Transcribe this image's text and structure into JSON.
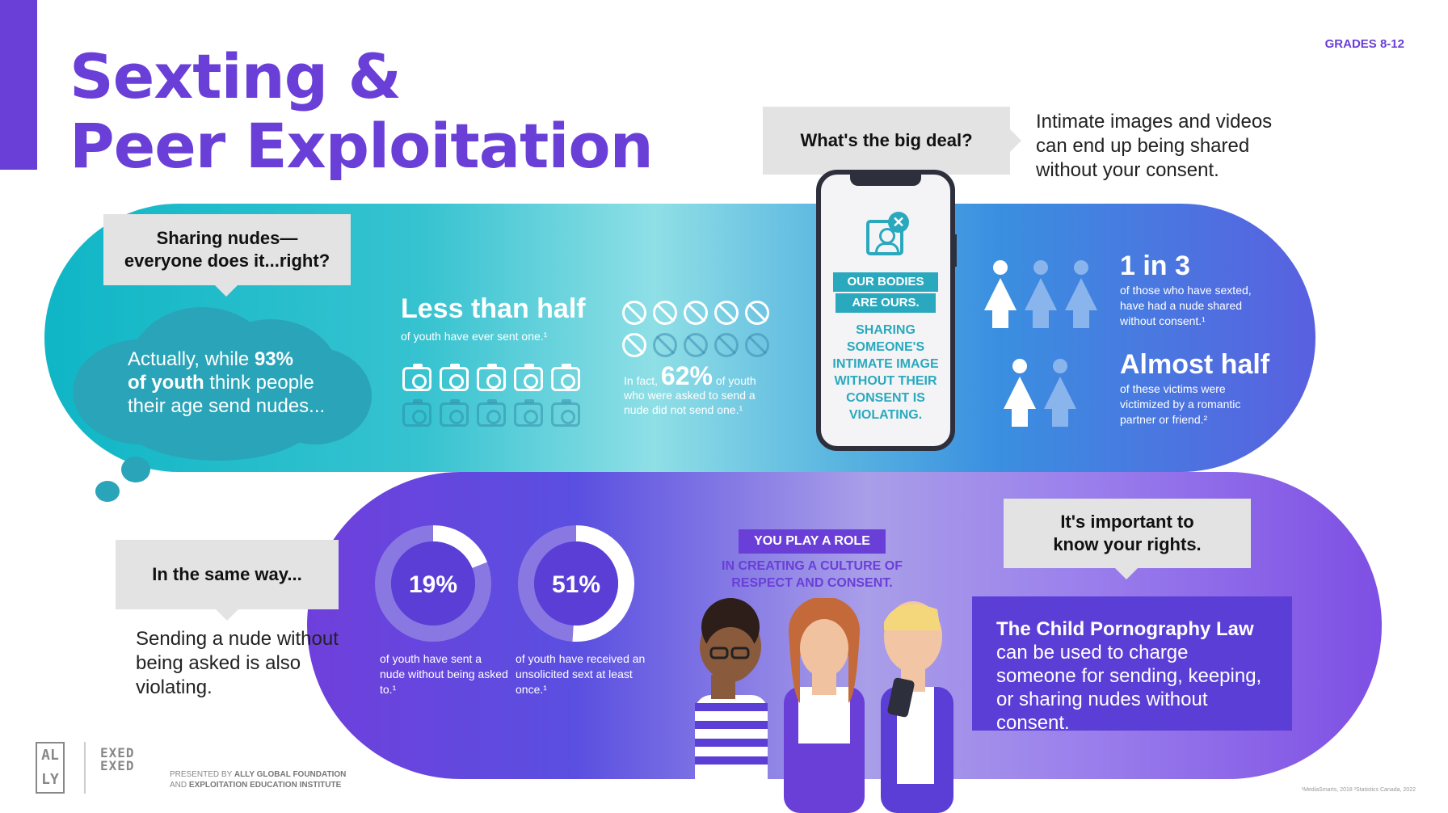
{
  "header": {
    "title_line1": "Sexting &",
    "title_line2": "Peer Exploitation",
    "grades": "GRADES 8-12"
  },
  "callouts": {
    "sharing_nudes": "Sharing nudes—\neveryone does it...right?",
    "big_deal": "What's the big deal?",
    "same_way": "In the same way...",
    "rights_line1": "It's important to",
    "rights_line2": "know your rights."
  },
  "big_deal_text": "Intimate images and videos can end up being shared without your consent.",
  "cloud": {
    "line1_pre": "Actually, while ",
    "line1_bold": "93%",
    "line2_bold": "of youth",
    "line2_rest": " think people",
    "line3": "their age send nudes..."
  },
  "less_than_half": {
    "heading": "Less than half",
    "sub": "of youth have ever sent one.¹"
  },
  "sixty_two": {
    "pre": "In fact, ",
    "big": "62%",
    "post": " of youth",
    "line2": "who were asked to send a",
    "line3": "nude did not send one.¹"
  },
  "phone": {
    "banner1": "OUR BODIES",
    "banner2": "ARE OURS.",
    "message": "SHARING SOMEONE'S INTIMATE IMAGE WITHOUT THEIR CONSENT IS VIOLATING.",
    "close_glyph": "✕"
  },
  "stats_right": {
    "one_in_3": "1 in 3",
    "one_in_3_sub": "of those who have sexted, have had a nude shared without consent.¹",
    "almost_half": "Almost half",
    "almost_half_sub": "of these victims were victimized by a romantic partner or friend.²"
  },
  "same_way_text": "Sending a nude without being asked is also violating.",
  "donuts": [
    {
      "value": 19,
      "label": "19%",
      "caption": "of youth have sent a nude without being asked to.¹"
    },
    {
      "value": 51,
      "label": "51%",
      "caption": "of youth have received an unsolicited sext at least once.¹"
    }
  ],
  "role": {
    "banner": "YOU PLAY A ROLE",
    "sub": "IN CREATING A CULTURE OF RESPECT AND CONSENT."
  },
  "law": {
    "bold": "The Child Pornography Law",
    "rest": "can be used to charge someone for sending, keeping, or sharing nudes without consent."
  },
  "footer": {
    "ally_logo": "AL LY",
    "exed_logo": "EXED EXED",
    "presented_pre": "PRESENTED BY ",
    "presented_org1": "ALLY GLOBAL FOUNDATION",
    "presented_and": "AND ",
    "presented_org2": "EXPLOITATION EDUCATION INSTITUTE",
    "footnotes": "¹MediaSmarts, 2018   ²Statistics Canada, 2022"
  },
  "colors": {
    "brand_purple": "#6a3fd8",
    "teal": "#2aa9be",
    "callout_gray": "#e3e3e3",
    "law_box": "#5b3ed6"
  }
}
